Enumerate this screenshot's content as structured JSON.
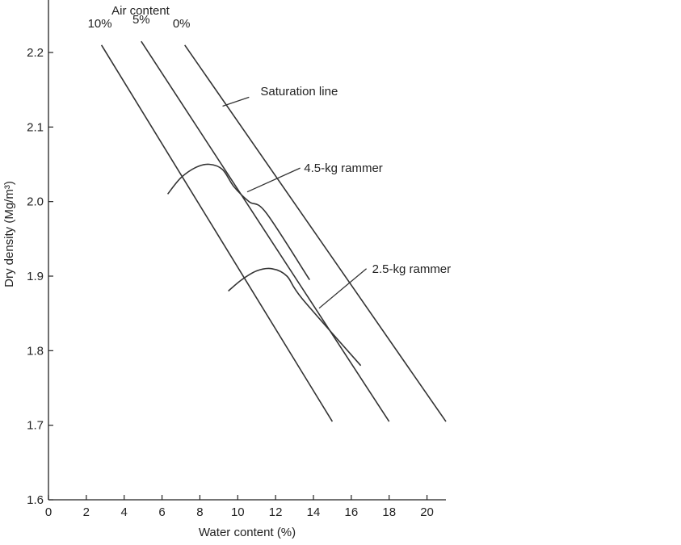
{
  "chart_data": {
    "type": "line",
    "xlabel": "Water content (%)",
    "ylabel": "Dry density (Mg/m³)",
    "xlim": [
      0,
      21
    ],
    "ylim": [
      1.6,
      2.25
    ],
    "x_ticks": [
      0,
      2,
      4,
      6,
      8,
      10,
      12,
      14,
      16,
      18,
      20
    ],
    "y_ticks": [
      1.6,
      1.7,
      1.8,
      1.9,
      2.0,
      2.1,
      2.2
    ],
    "grid": false,
    "air_content_title": "Air content",
    "series": [
      {
        "name": "10%",
        "role": "air-void",
        "points": [
          [
            2.8,
            2.21
          ],
          [
            15.0,
            1.705
          ]
        ]
      },
      {
        "name": "5%",
        "role": "air-void",
        "points": [
          [
            4.9,
            2.215
          ],
          [
            18.0,
            1.705
          ]
        ]
      },
      {
        "name": "0%",
        "role": "air-void",
        "points": [
          [
            7.2,
            2.21
          ],
          [
            21.0,
            1.705
          ]
        ]
      },
      {
        "name": "4.5-kg rammer",
        "role": "compaction",
        "points": [
          [
            6.3,
            2.01
          ],
          [
            7.0,
            2.032
          ],
          [
            7.8,
            2.046
          ],
          [
            8.5,
            2.05
          ],
          [
            9.2,
            2.043
          ],
          [
            9.8,
            2.02
          ],
          [
            10.6,
            2.0
          ],
          [
            11.5,
            1.985
          ],
          [
            13.8,
            1.895
          ]
        ]
      },
      {
        "name": "2.5-kg rammer",
        "role": "compaction",
        "points": [
          [
            9.5,
            1.88
          ],
          [
            10.2,
            1.895
          ],
          [
            11.0,
            1.907
          ],
          [
            11.8,
            1.91
          ],
          [
            12.6,
            1.9
          ],
          [
            13.4,
            1.87
          ],
          [
            16.5,
            1.78
          ]
        ]
      }
    ],
    "annotations": [
      {
        "text": "Saturation line",
        "label_at": [
          11.2,
          2.148
        ],
        "pointer_from": [
          10.6,
          2.14
        ],
        "pointer_to": [
          9.2,
          2.128
        ]
      },
      {
        "text": "4.5-kg rammer",
        "label_at": [
          13.5,
          2.045
        ],
        "pointer_from": [
          13.3,
          2.045
        ],
        "pointer_to": [
          10.5,
          2.013
        ]
      },
      {
        "text": "2.5-kg rammer",
        "label_at": [
          17.1,
          1.91
        ],
        "pointer_from": [
          16.8,
          1.91
        ],
        "pointer_to": [
          14.3,
          1.857
        ]
      }
    ]
  }
}
